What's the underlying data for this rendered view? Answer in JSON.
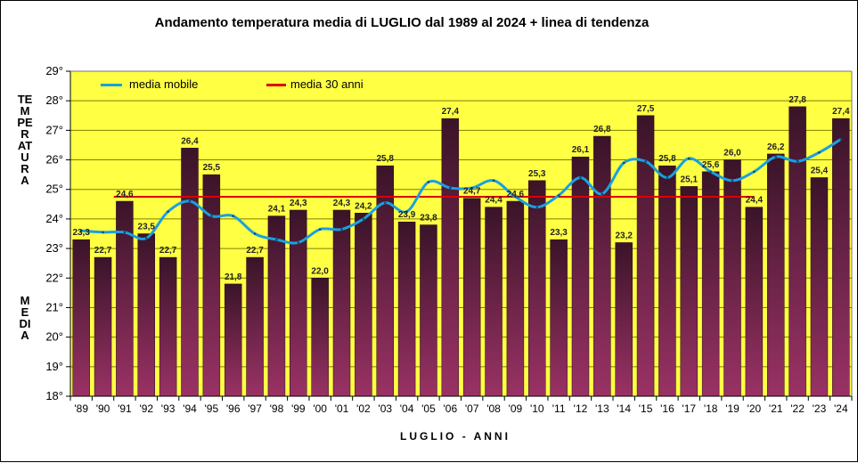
{
  "chart_data": {
    "type": "bar",
    "title": "Andamento temperatura media di LUGLIO dal 1989 al 2024 + linea di tendenza",
    "ylabel_top": "TEMPERATURA",
    "ylabel_bottom": "MEDIA",
    "xlabel": "LUGLIO - ANNI",
    "categories": [
      "'89",
      "'90",
      "'91",
      "'92",
      "'93",
      "'94",
      "'95",
      "'96",
      "'97",
      "'98",
      "'99",
      "'00",
      "'01",
      "'02",
      "'03",
      "'04",
      "'05",
      "'06",
      "'07",
      "'08",
      "'09",
      "'10",
      "'11",
      "'12",
      "'13",
      "'14",
      "'15",
      "'16",
      "'17",
      "'18",
      "'19",
      "'20",
      "'21",
      "'22",
      "'23",
      "'24"
    ],
    "values": [
      23.3,
      22.7,
      24.6,
      23.5,
      22.7,
      26.4,
      25.5,
      21.8,
      22.7,
      24.1,
      24.3,
      22.0,
      24.3,
      24.2,
      25.8,
      23.9,
      23.8,
      27.4,
      24.7,
      24.4,
      24.6,
      25.3,
      23.3,
      26.1,
      26.8,
      23.2,
      27.5,
      25.8,
      25.1,
      25.6,
      26.0,
      24.4,
      26.2,
      27.8,
      25.4,
      27.4
    ],
    "value_labels": [
      "23,3",
      "22,7",
      "24,6",
      "23,5",
      "22,7",
      "26,4",
      "25,5",
      "21,8",
      "22,7",
      "24,1",
      "24,3",
      "22,0",
      "24,3",
      "24,2",
      "25,8",
      "23,9",
      "23,8",
      "27,4",
      "24,7",
      "24,4",
      "24,6",
      "25,3",
      "23,3",
      "26,1",
      "26,8",
      "23,2",
      "27,5",
      "25,8",
      "25,1",
      "25,6",
      "26,0",
      "24,4",
      "26,2",
      "27,8",
      "25,4",
      "27,4"
    ],
    "moving_average": [
      23.6,
      23.55,
      23.55,
      23.35,
      24.25,
      24.6,
      24.1,
      24.1,
      23.5,
      23.3,
      23.2,
      23.65,
      23.65,
      24.0,
      24.55,
      24.25,
      25.25,
      25.05,
      25.05,
      25.3,
      24.75,
      24.4,
      24.8,
      25.4,
      24.85,
      25.9,
      25.95,
      25.4,
      26.05,
      25.6,
      25.3,
      25.6,
      26.1,
      25.95,
      26.25,
      26.7
    ],
    "series": [
      {
        "name": "media mobile",
        "color": "#1aa0e0"
      },
      {
        "name": "media 30 anni",
        "value": 24.75,
        "color": "#dd0000"
      }
    ],
    "ylim": [
      18,
      29
    ],
    "yticks": [
      "18°",
      "19°",
      "20°",
      "21°",
      "22°",
      "23°",
      "24°",
      "25°",
      "26°",
      "27°",
      "28°",
      "29°"
    ],
    "grid": true,
    "legend_position": "top-left",
    "colors": {
      "plot_bg": "#ffff44",
      "bar_top": "#3a1428",
      "bar_bottom": "#9a3265",
      "grid": "#808000"
    }
  }
}
